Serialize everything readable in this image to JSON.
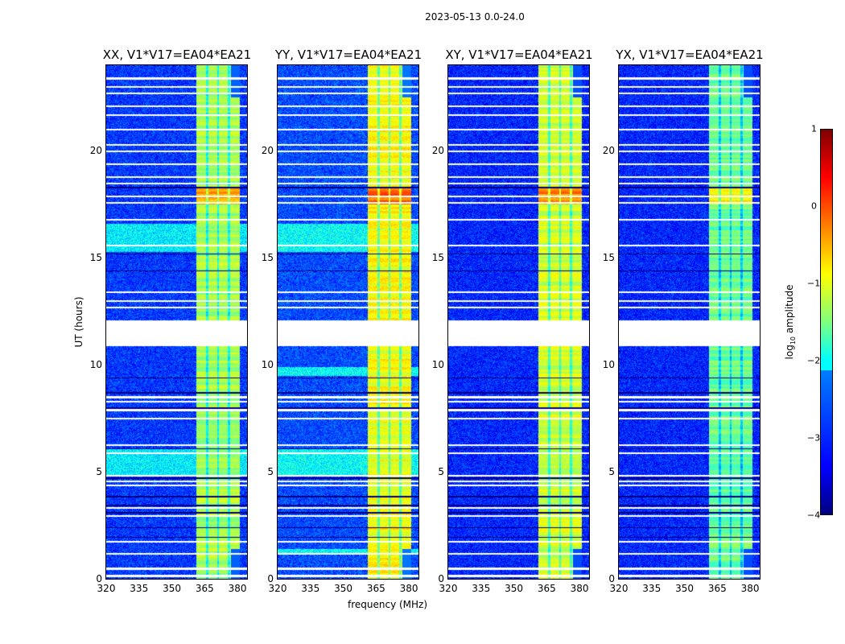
{
  "chart_data": {
    "type": "heatmap",
    "title": "2023-05-13 0.0-24.0",
    "xlabel": "frequency (MHz)",
    "ylabel": "UT (hours)",
    "xlim": [
      320,
      384.4
    ],
    "ylim": [
      0,
      24
    ],
    "xticks": [
      "320",
      "335",
      "350",
      "365",
      "380"
    ],
    "yticks": [
      "0",
      "5",
      "10",
      "15",
      "20"
    ],
    "panels": [
      {
        "title": "XX, V1*V17=EA04*EA21",
        "band_level": -1.3,
        "background": -3.1,
        "cyan_rows": [
          [
            4.8,
            6.1
          ],
          [
            15.3,
            16.6
          ]
        ]
      },
      {
        "title": "YY, V1*V17=EA04*EA21",
        "band_level": -0.9,
        "background": -3.0,
        "cyan_rows": [
          [
            4.8,
            6.1
          ],
          [
            15.3,
            16.6
          ],
          [
            9.5,
            9.9
          ],
          [
            1.2,
            1.4
          ]
        ]
      },
      {
        "title": "XY, V1*V17=EA04*EA21",
        "band_level": -1.1,
        "background": -3.2,
        "cyan_rows": []
      },
      {
        "title": "YX, V1*V17=EA04*EA21",
        "band_level": -1.6,
        "background": -3.2,
        "cyan_rows": []
      }
    ],
    "rfi_band_mhz": [
      361,
      381
    ],
    "band_notches_mhz": [
      366,
      371,
      376
    ],
    "flagged_gap_hours": [
      10.9,
      12.1
    ],
    "flagged_rows_hours": [
      0.15,
      0.49,
      1.2,
      1.76,
      2.96,
      3.33,
      4.38,
      4.57,
      4.83,
      5.88,
      6.25,
      7.5,
      7.9,
      8.3,
      8.5,
      12.7,
      13.0,
      13.4,
      15.6,
      16.8,
      17.6,
      17.9,
      18.5,
      18.8,
      19.4,
      20.0,
      20.3,
      21.0,
      21.7,
      22.1,
      22.7,
      23.0,
      23.4
    ],
    "zero_rows_hours": [
      1.95,
      2.4,
      3.1,
      3.45,
      3.86,
      4.72,
      6.1,
      8.0,
      8.7,
      9.4,
      14.4,
      15.2,
      18.3
    ],
    "colorbar": {
      "label": "log10 amplitude",
      "range": [
        -4,
        1
      ],
      "ticks": [
        "1",
        "0",
        "−1",
        "−2",
        "−3",
        "−4"
      ],
      "colormap": "jet"
    }
  }
}
